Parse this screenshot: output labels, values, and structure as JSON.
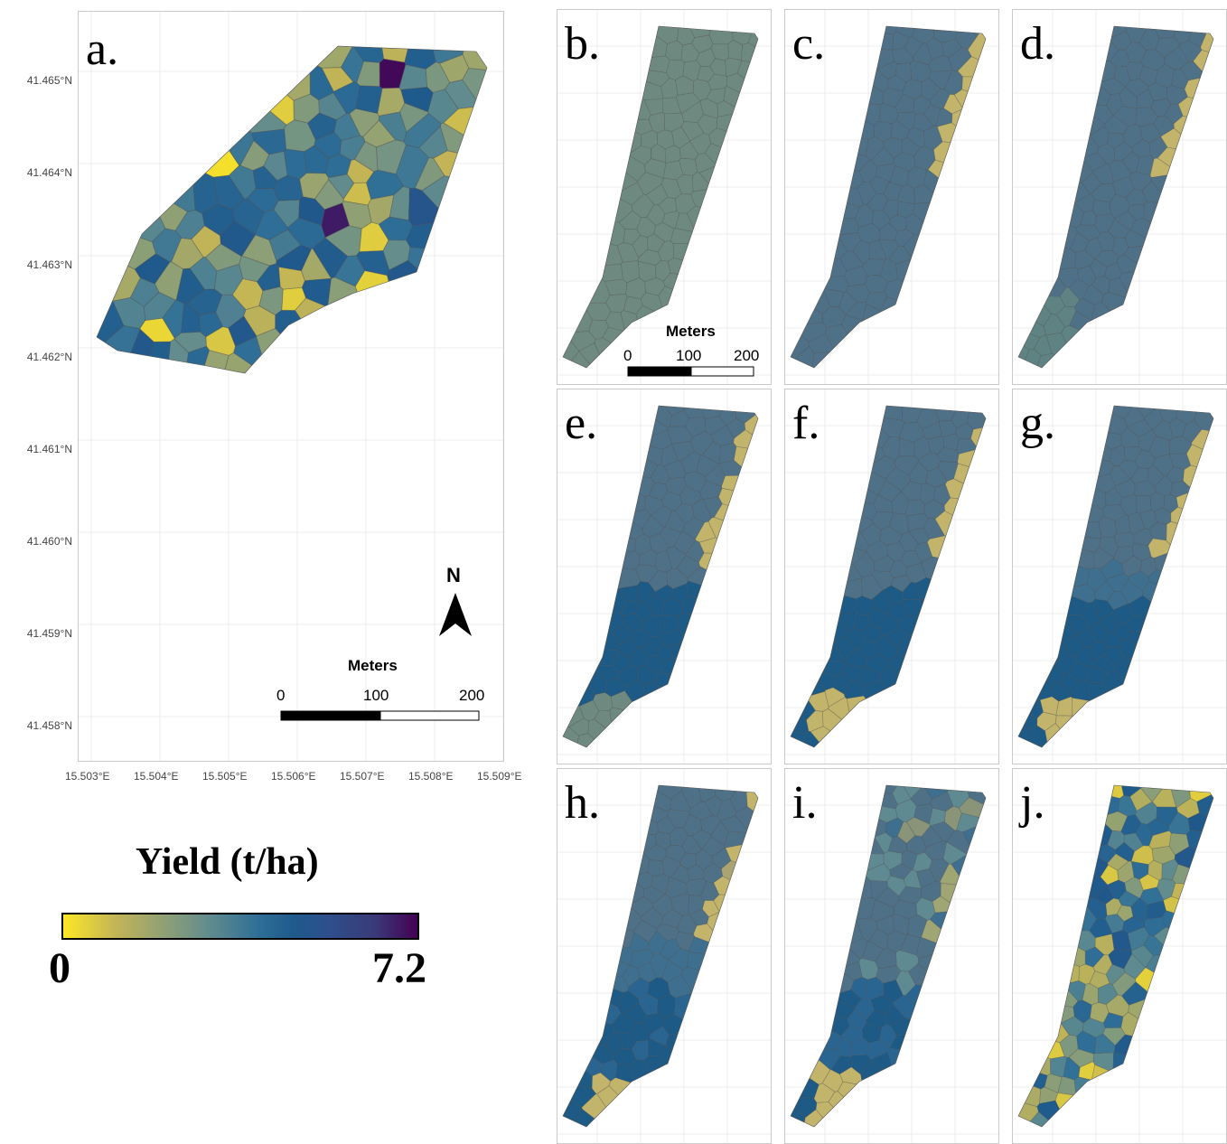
{
  "panel_a": {
    "label": "a.",
    "lat_ticks": [
      "41.465°N",
      "41.464°N",
      "41.463°N",
      "41.462°N",
      "41.461°N",
      "41.460°N",
      "41.459°N",
      "41.458°N"
    ],
    "lon_ticks": [
      "15.503°E",
      "15.504°E",
      "15.505°E",
      "15.506°E",
      "15.507°E",
      "15.508°E",
      "15.509°E"
    ],
    "north_label": "N",
    "scalebar": {
      "title": "Meters",
      "labels": [
        "0",
        "100",
        "200"
      ]
    }
  },
  "small_panels": [
    {
      "label": "b.",
      "pattern": "uniform"
    },
    {
      "label": "c.",
      "pattern": "two-zone"
    },
    {
      "label": "d.",
      "pattern": "three-zone"
    },
    {
      "label": "e.",
      "pattern": "four-zone"
    },
    {
      "label": "f.",
      "pattern": "five-zone"
    },
    {
      "label": "g.",
      "pattern": "six-zone"
    },
    {
      "label": "h.",
      "pattern": "seven-zone"
    },
    {
      "label": "i.",
      "pattern": "eight-zone"
    },
    {
      "label": "j.",
      "pattern": "all-cells"
    }
  ],
  "panel_b_scalebar": {
    "title": "Meters",
    "labels": [
      "0",
      "100",
      "200"
    ]
  },
  "legend": {
    "title": "Yield (t/ha)",
    "min": "0",
    "max": "7.2"
  },
  "colors": {
    "low": "#fde725",
    "mid": "#5e8a8f",
    "high": "#1f5a8c",
    "max": "#440154",
    "gray_green": "#6e8a80",
    "blue_gray": "#4f7188",
    "tan": "#c2b46a",
    "deep_blue": "#1d5a86"
  }
}
